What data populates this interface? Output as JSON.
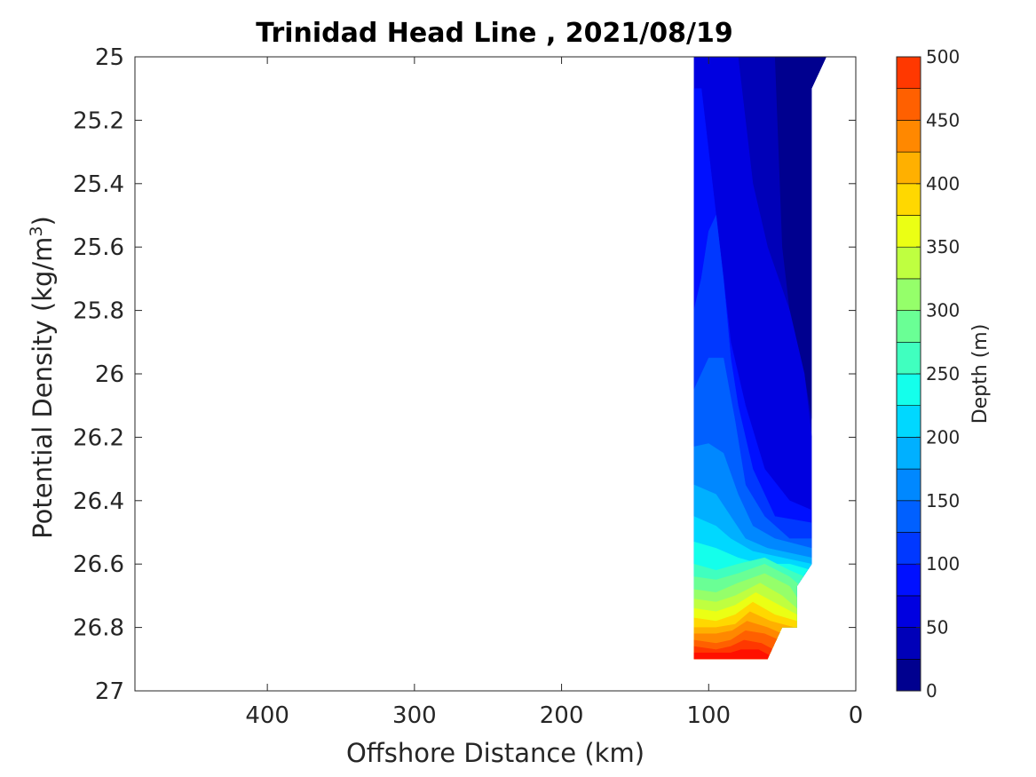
{
  "chart_data": {
    "type": "contourf",
    "title": "Trinidad Head Line , 2021/08/19",
    "xlabel": "Offshore Distance (km)",
    "ylabel_main": "Potential Density (kg/m",
    "ylabel_sup": "3",
    "ylabel_close": ")",
    "xlim": [
      490,
      0
    ],
    "x_reversed": true,
    "ylim": [
      25,
      27
    ],
    "y_reversed": true,
    "x_ticks": [
      400,
      300,
      200,
      100,
      0
    ],
    "x_tick_labels": [
      "400",
      "300",
      "200",
      "100",
      "0"
    ],
    "y_ticks": [
      25,
      25.2,
      25.4,
      25.6,
      25.8,
      26,
      26.2,
      26.4,
      26.6,
      26.8,
      27
    ],
    "y_tick_labels": [
      "25",
      "25.2",
      "25.4",
      "25.6",
      "25.8",
      "26",
      "26.2",
      "26.4",
      "26.6",
      "26.8",
      "27"
    ],
    "colorbar": {
      "label": "Depth (m)",
      "min": 0,
      "max": 500,
      "ticks": [
        0,
        50,
        100,
        150,
        200,
        250,
        300,
        350,
        400,
        450,
        500
      ],
      "tick_labels": [
        "0",
        "50",
        "100",
        "150",
        "200",
        "250",
        "300",
        "350",
        "400",
        "450",
        "500"
      ],
      "levels": [
        0,
        25,
        50,
        75,
        100,
        125,
        150,
        175,
        200,
        225,
        250,
        275,
        300,
        325,
        350,
        375,
        400,
        425,
        450,
        475,
        500
      ],
      "colors": [
        "#00008f",
        "#0000b8",
        "#0000e0",
        "#0010ff",
        "#0038ff",
        "#0060ff",
        "#0088ff",
        "#00b0ff",
        "#00d8ff",
        "#14ffeb",
        "#40ffbf",
        "#6aff95",
        "#95ff6a",
        "#bfff40",
        "#ebff14",
        "#ffd800",
        "#ffb000",
        "#ff8800",
        "#ff6000",
        "#ff3800",
        "#ff1000",
        "#e00000",
        "#b80000"
      ]
    },
    "data_region": {
      "x_left": 110,
      "x_right_top": 20,
      "x_right_mid": 30,
      "density_top": 25,
      "density_bottom": 26.9,
      "approx_bottom_x": [
        110,
        60
      ]
    },
    "contour_edges": [
      {
        "level": 25,
        "points": [
          [
            80,
            25
          ],
          [
            75,
            25.2
          ],
          [
            70,
            25.4
          ],
          [
            60,
            25.6
          ],
          [
            45,
            25.8
          ],
          [
            35,
            26.0
          ],
          [
            30,
            26.2
          ]
        ]
      },
      {
        "level": 50,
        "points": [
          [
            105,
            25.1
          ],
          [
            100,
            25.3
          ],
          [
            95,
            25.5
          ],
          [
            90,
            25.7
          ],
          [
            85,
            25.9
          ],
          [
            75,
            26.1
          ],
          [
            62,
            26.3
          ],
          [
            45,
            26.4
          ],
          [
            30,
            26.43
          ]
        ]
      },
      {
        "level": 75,
        "points": [
          [
            110,
            25.8
          ],
          [
            105,
            25.7
          ],
          [
            100,
            25.55
          ],
          [
            95,
            25.5
          ],
          [
            90,
            25.7
          ],
          [
            85,
            25.95
          ],
          [
            80,
            26.1
          ],
          [
            70,
            26.3
          ],
          [
            55,
            26.45
          ],
          [
            30,
            26.47
          ]
        ]
      },
      {
        "level": 100,
        "points": [
          [
            110,
            26.05
          ],
          [
            100,
            25.95
          ],
          [
            90,
            25.95
          ],
          [
            82,
            26.15
          ],
          [
            75,
            26.35
          ],
          [
            62,
            26.45
          ],
          [
            45,
            26.52
          ],
          [
            30,
            26.52
          ]
        ]
      },
      {
        "level": 125,
        "points": [
          [
            110,
            26.23
          ],
          [
            100,
            26.22
          ],
          [
            90,
            26.25
          ],
          [
            80,
            26.38
          ],
          [
            70,
            26.48
          ],
          [
            55,
            26.52
          ],
          [
            30,
            26.55
          ]
        ]
      },
      {
        "level": 150,
        "points": [
          [
            110,
            26.35
          ],
          [
            95,
            26.38
          ],
          [
            85,
            26.45
          ],
          [
            75,
            26.52
          ],
          [
            60,
            26.55
          ],
          [
            30,
            26.58
          ]
        ]
      },
      {
        "level": 175,
        "points": [
          [
            110,
            26.45
          ],
          [
            95,
            26.48
          ],
          [
            85,
            26.52
          ],
          [
            70,
            26.56
          ],
          [
            30,
            26.6
          ]
        ]
      },
      {
        "level": 200,
        "points": [
          [
            110,
            26.53
          ],
          [
            95,
            26.55
          ],
          [
            80,
            26.58
          ],
          [
            65,
            26.6
          ],
          [
            45,
            26.6
          ],
          [
            30,
            26.62
          ]
        ]
      },
      {
        "level": 225,
        "points": [
          [
            110,
            26.6
          ],
          [
            95,
            26.62
          ],
          [
            80,
            26.6
          ],
          [
            62,
            26.58
          ],
          [
            45,
            26.62
          ],
          [
            30,
            26.65
          ]
        ]
      },
      {
        "level": 250,
        "points": [
          [
            110,
            26.64
          ],
          [
            95,
            26.65
          ],
          [
            80,
            26.63
          ],
          [
            62,
            26.6
          ],
          [
            45,
            26.64
          ],
          [
            35,
            26.68
          ]
        ]
      },
      {
        "level": 275,
        "points": [
          [
            110,
            26.68
          ],
          [
            95,
            26.69
          ],
          [
            80,
            26.66
          ],
          [
            62,
            26.63
          ],
          [
            45,
            26.67
          ],
          [
            38,
            26.72
          ]
        ]
      },
      {
        "level": 300,
        "points": [
          [
            110,
            26.71
          ],
          [
            95,
            26.72
          ],
          [
            82,
            26.7
          ],
          [
            65,
            26.66
          ],
          [
            50,
            26.7
          ],
          [
            40,
            26.74
          ]
        ]
      },
      {
        "level": 325,
        "points": [
          [
            110,
            26.74
          ],
          [
            95,
            26.75
          ],
          [
            82,
            26.73
          ],
          [
            68,
            26.69
          ],
          [
            52,
            26.73
          ],
          [
            40,
            26.76
          ]
        ]
      },
      {
        "level": 350,
        "points": [
          [
            110,
            26.77
          ],
          [
            95,
            26.78
          ],
          [
            82,
            26.76
          ],
          [
            70,
            26.72
          ],
          [
            55,
            26.76
          ],
          [
            40,
            26.78
          ]
        ]
      },
      {
        "level": 375,
        "points": [
          [
            110,
            26.8
          ],
          [
            95,
            26.8
          ],
          [
            82,
            26.79
          ],
          [
            72,
            26.75
          ],
          [
            58,
            26.78
          ],
          [
            42,
            26.8
          ]
        ]
      },
      {
        "level": 400,
        "points": [
          [
            110,
            26.82
          ],
          [
            95,
            26.82
          ],
          [
            84,
            26.81
          ],
          [
            74,
            26.78
          ],
          [
            60,
            26.8
          ],
          [
            50,
            26.82
          ]
        ]
      },
      {
        "level": 425,
        "points": [
          [
            110,
            26.84
          ],
          [
            95,
            26.85
          ],
          [
            85,
            26.84
          ],
          [
            75,
            26.81
          ],
          [
            62,
            26.82
          ],
          [
            52,
            26.84
          ]
        ]
      },
      {
        "level": 450,
        "points": [
          [
            110,
            26.86
          ],
          [
            95,
            26.87
          ],
          [
            85,
            26.86
          ],
          [
            76,
            26.84
          ],
          [
            64,
            26.85
          ],
          [
            56,
            26.87
          ]
        ]
      },
      {
        "level": 475,
        "points": [
          [
            110,
            26.88
          ],
          [
            95,
            26.88
          ],
          [
            85,
            26.88
          ],
          [
            78,
            26.87
          ],
          [
            66,
            26.87
          ],
          [
            58,
            26.89
          ]
        ]
      }
    ]
  }
}
